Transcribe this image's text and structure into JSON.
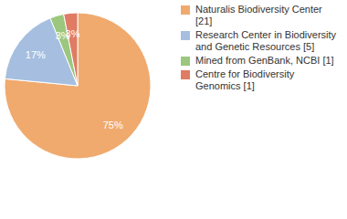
{
  "chart_data": {
    "type": "pie",
    "categories": [
      "Naturalis Biodiversity Center [21]",
      "Research Center in Biodiversity and Genetic Resources [5]",
      "Mined from GenBank, NCBI [1]",
      "Centre for Biodiversity Genomics [1]"
    ],
    "values": [
      75,
      17,
      3,
      3
    ],
    "value_labels": [
      "75%",
      "17%",
      "3%",
      "3%"
    ],
    "colors": [
      "#f0aa6e",
      "#a6bfe0",
      "#9bc77e",
      "#e07b64"
    ],
    "data_labels": true,
    "legend": "top-right"
  }
}
